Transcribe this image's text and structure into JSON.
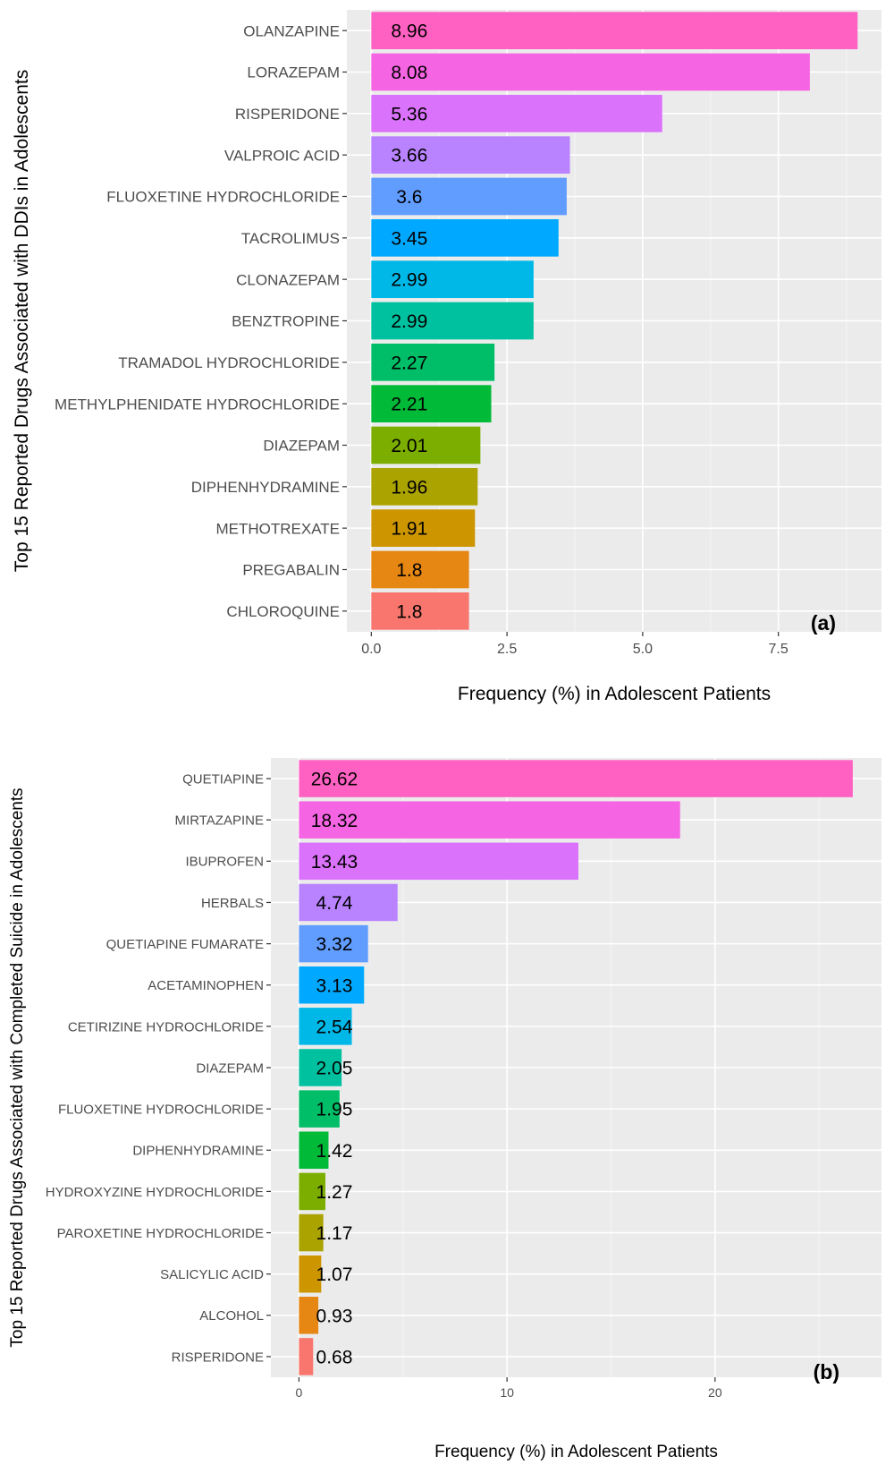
{
  "chart_data": [
    {
      "type": "bar",
      "orientation": "horizontal",
      "panel_label": "(a)",
      "ylabel": "Top 15 Reported Drugs Associated with DDIs in Adolescents",
      "xlabel": "Frequency (%) in Adolescent Patients",
      "xlim": [
        -0.45,
        9.4
      ],
      "xticks": [
        "0.0",
        "2.5",
        "5.0",
        "7.5"
      ],
      "xtick_values": [
        0,
        2.5,
        5.0,
        7.5
      ],
      "grid": true,
      "legend": "none",
      "categories": [
        "OLANZAPINE",
        "LORAZEPAM",
        "RISPERIDONE",
        "VALPROIC ACID",
        "FLUOXETINE HYDROCHLORIDE",
        "TACROLIMUS",
        "CLONAZEPAM",
        "BENZTROPINE",
        "TRAMADOL HYDROCHLORIDE",
        "METHYLPHENIDATE HYDROCHLORIDE",
        "DIAZEPAM",
        "DIPHENHYDRAMINE",
        "METHOTREXATE",
        "PREGABALIN",
        "CHLOROQUINE"
      ],
      "values": [
        8.96,
        8.08,
        5.36,
        3.66,
        3.6,
        3.45,
        2.99,
        2.99,
        2.27,
        2.21,
        2.01,
        1.96,
        1.91,
        1.8,
        1.8
      ],
      "value_labels": [
        "8.96",
        "8.08",
        "5.36",
        "3.66",
        "3.6",
        "3.45",
        "2.99",
        "2.99",
        "2.27",
        "2.21",
        "2.01",
        "1.96",
        "1.91",
        "1.8",
        "1.8"
      ],
      "label_x": 0.7,
      "colors": [
        "#FF61C3",
        "#F564E3",
        "#DB72FB",
        "#B983FF",
        "#619CFF",
        "#00A9FF",
        "#00B8E7",
        "#00C19F",
        "#00BE67",
        "#00BA38",
        "#7CAE00",
        "#ABA300",
        "#CD9600",
        "#E68613",
        "#F8766D"
      ]
    },
    {
      "type": "bar",
      "orientation": "horizontal",
      "panel_label": "(b)",
      "ylabel": "Top 15 Reported Drugs Associated with Completed Suicide in Adolescents",
      "xlabel": "Frequency (%) in Adolescent Patients",
      "xlim": [
        -1.35,
        28.0
      ],
      "xticks": [
        "0",
        "10",
        "20"
      ],
      "xtick_values": [
        0,
        10,
        20
      ],
      "grid": true,
      "legend": "none",
      "categories": [
        "QUETIAPINE",
        "MIRTAZAPINE",
        "IBUPROFEN",
        "HERBALS",
        "QUETIAPINE FUMARATE",
        "ACETAMINOPHEN",
        "CETIRIZINE HYDROCHLORIDE",
        "DIAZEPAM",
        "FLUOXETINE HYDROCHLORIDE",
        "DIPHENHYDRAMINE",
        "HYDROXYZINE HYDROCHLORIDE",
        "PAROXETINE HYDROCHLORIDE",
        "SALICYLIC ACID",
        "ALCOHOL",
        "RISPERIDONE"
      ],
      "values": [
        26.62,
        18.32,
        13.43,
        4.74,
        3.32,
        3.13,
        2.54,
        2.05,
        1.95,
        1.42,
        1.27,
        1.17,
        1.07,
        0.93,
        0.68
      ],
      "value_labels": [
        "26.62",
        "18.32",
        "13.43",
        "4.74",
        "3.32",
        "3.13",
        "2.54",
        "2.05",
        "1.95",
        "1.42",
        "1.27",
        "1.17",
        "1.07",
        "0.93",
        "0.68"
      ],
      "label_x": 1.7,
      "colors": [
        "#FF61C3",
        "#F564E3",
        "#DB72FB",
        "#B983FF",
        "#619CFF",
        "#00A9FF",
        "#00B8E7",
        "#00C19F",
        "#00BE67",
        "#00BA38",
        "#7CAE00",
        "#ABA300",
        "#CD9600",
        "#E68613",
        "#F8766D"
      ]
    }
  ]
}
